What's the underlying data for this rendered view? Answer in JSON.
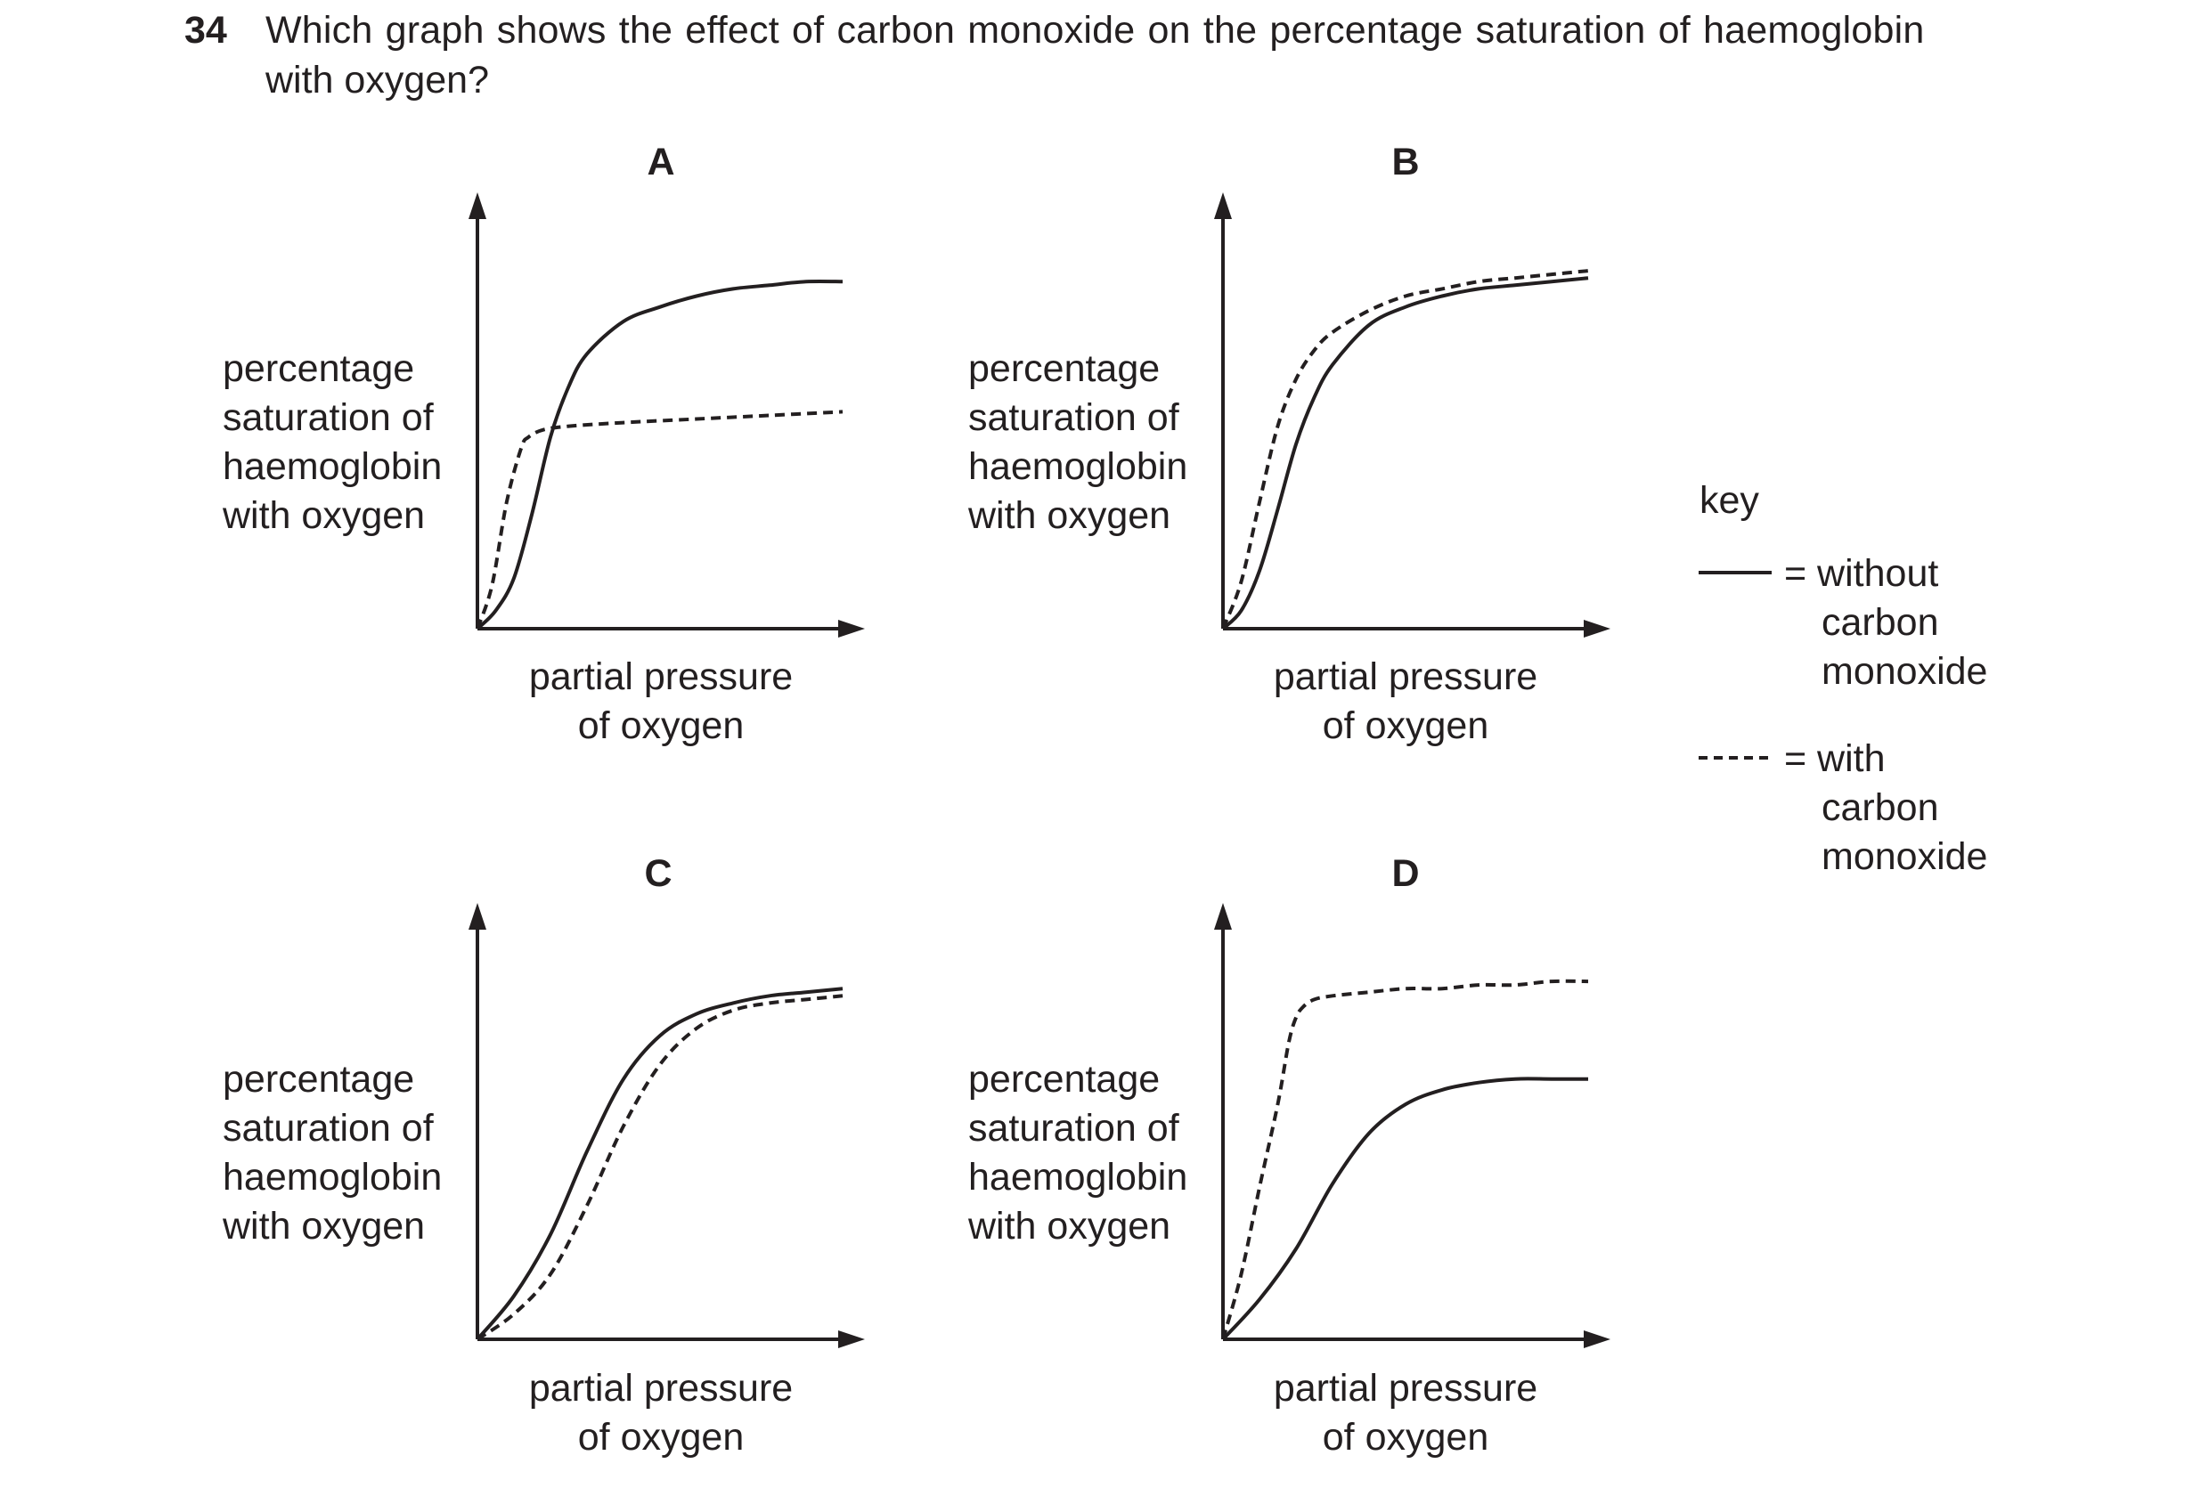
{
  "question": {
    "number": "34",
    "text_line1": "Which graph shows the effect of carbon monoxide on the percentage saturation of haemoglobin",
    "text_line2": "with oxygen?"
  },
  "axis_labels": {
    "y": [
      "percentage",
      "saturation of",
      "haemoglobin",
      "with oxygen"
    ],
    "x": [
      "partial pressure",
      "of oxygen"
    ]
  },
  "key": {
    "title": "key",
    "solid_label": [
      "= without",
      "carbon",
      "monoxide"
    ],
    "dashed_label": [
      "= with",
      "carbon",
      "monoxide"
    ]
  },
  "colors": {
    "ink": "#231f20",
    "background": "#ffffff"
  },
  "chart_data": [
    {
      "type": "line",
      "title": "A",
      "xlabel": "partial pressure of oxygen",
      "ylabel": "percentage saturation of haemoglobin with oxygen",
      "xlim": [
        0,
        100
      ],
      "ylim": [
        0,
        100
      ],
      "series": [
        {
          "name": "without carbon monoxide",
          "style": "solid",
          "x": [
            0,
            5,
            10,
            15,
            20,
            25,
            30,
            40,
            50,
            60,
            70,
            80,
            90,
            100
          ],
          "y": [
            0,
            5,
            14,
            32,
            53,
            67,
            76,
            85,
            89,
            92,
            94,
            95,
            96,
            96
          ]
        },
        {
          "name": "with carbon monoxide",
          "style": "dashed",
          "x": [
            0,
            4,
            8,
            12,
            14,
            18,
            25,
            40,
            60,
            80,
            100
          ],
          "y": [
            0,
            12,
            35,
            50,
            53,
            55,
            56,
            57,
            58,
            59,
            60
          ]
        }
      ]
    },
    {
      "type": "line",
      "title": "B",
      "xlabel": "partial pressure of oxygen",
      "ylabel": "percentage saturation of haemoglobin with oxygen",
      "xlim": [
        0,
        100
      ],
      "ylim": [
        0,
        100
      ],
      "series": [
        {
          "name": "without carbon monoxide",
          "style": "solid",
          "x": [
            0,
            5,
            10,
            15,
            20,
            25,
            30,
            40,
            50,
            60,
            70,
            80,
            90,
            100
          ],
          "y": [
            0,
            5,
            16,
            33,
            51,
            64,
            73,
            84,
            89,
            92,
            94,
            95,
            96,
            97
          ]
        },
        {
          "name": "with carbon monoxide",
          "style": "dashed",
          "x": [
            0,
            5,
            10,
            15,
            20,
            25,
            30,
            40,
            50,
            60,
            70,
            80,
            90,
            100
          ],
          "y": [
            0,
            13,
            35,
            56,
            69,
            77,
            82,
            88,
            92,
            94,
            96,
            97,
            98,
            99
          ]
        }
      ]
    },
    {
      "type": "line",
      "title": "C",
      "xlabel": "partial pressure of oxygen",
      "ylabel": "percentage saturation of haemoglobin with oxygen",
      "xlim": [
        0,
        100
      ],
      "ylim": [
        0,
        100
      ],
      "series": [
        {
          "name": "without carbon monoxide",
          "style": "solid",
          "x": [
            0,
            10,
            20,
            30,
            40,
            50,
            60,
            70,
            80,
            90,
            100
          ],
          "y": [
            0,
            12,
            29,
            52,
            72,
            84,
            90,
            93,
            95,
            96,
            97
          ]
        },
        {
          "name": "with carbon monoxide",
          "style": "dashed",
          "x": [
            0,
            10,
            20,
            30,
            40,
            50,
            60,
            70,
            80,
            90,
            100
          ],
          "y": [
            0,
            7,
            18,
            37,
            59,
            76,
            86,
            91,
            93,
            94,
            95
          ]
        }
      ]
    },
    {
      "type": "line",
      "title": "D",
      "xlabel": "partial pressure of oxygen",
      "ylabel": "percentage saturation of haemoglobin with oxygen",
      "xlim": [
        0,
        100
      ],
      "ylim": [
        0,
        100
      ],
      "series": [
        {
          "name": "without carbon monoxide",
          "style": "solid",
          "x": [
            0,
            10,
            20,
            30,
            40,
            50,
            60,
            70,
            80,
            90,
            100
          ],
          "y": [
            0,
            11,
            25,
            43,
            57,
            65,
            69,
            71,
            72,
            72,
            72
          ]
        },
        {
          "name": "with carbon monoxide",
          "style": "dashed",
          "x": [
            0,
            5,
            10,
            15,
            18,
            20,
            22,
            25,
            30,
            40,
            50,
            60,
            70,
            80,
            90,
            100
          ],
          "y": [
            0,
            18,
            42,
            65,
            82,
            89,
            92,
            94,
            95,
            96,
            97,
            97,
            98,
            98,
            99,
            99
          ]
        }
      ]
    }
  ]
}
